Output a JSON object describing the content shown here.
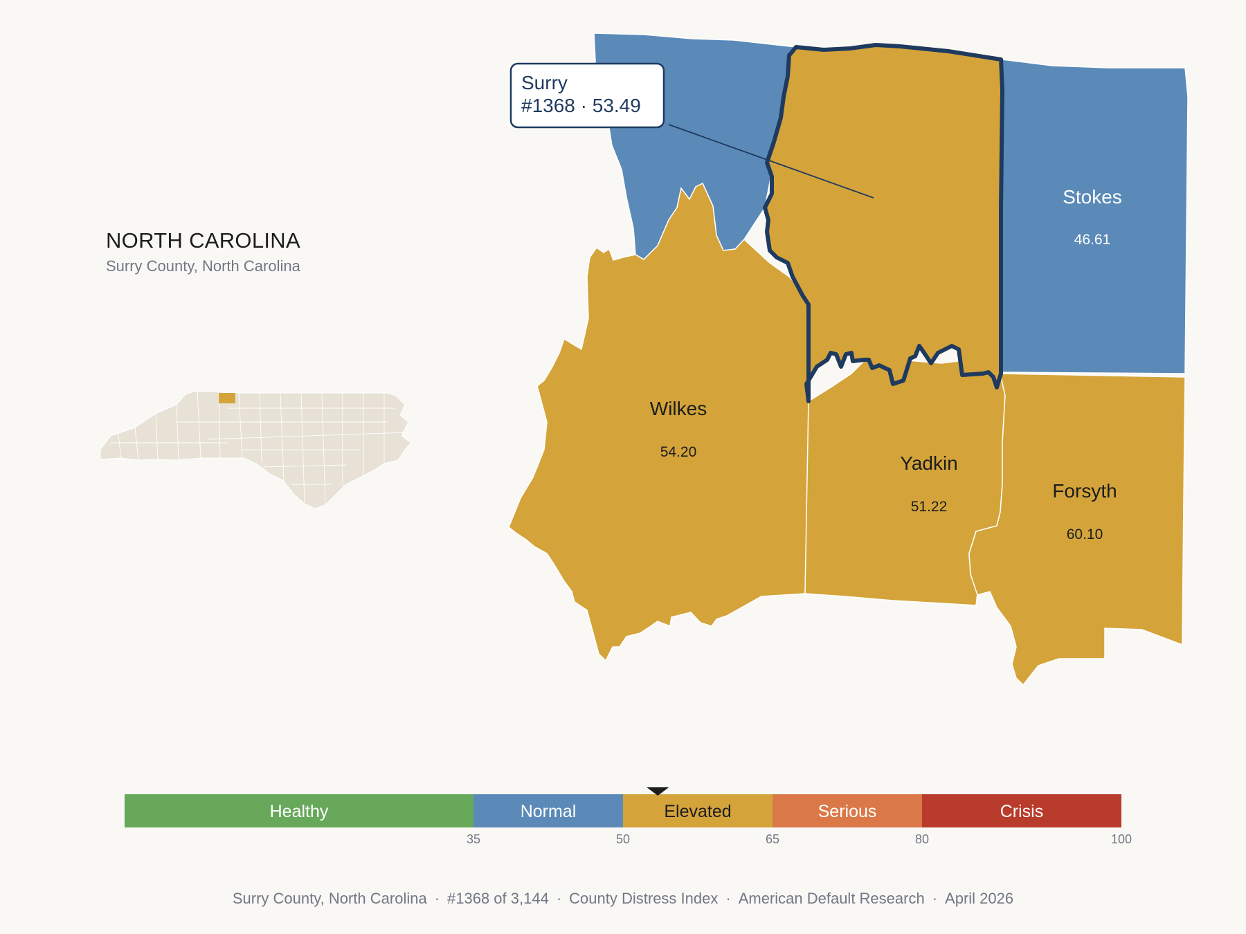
{
  "state": {
    "title": "NORTH CAROLINA",
    "subtitle": "Surry County, North Carolina"
  },
  "callout": {
    "name": "Surry",
    "detail": "#1368 · 53.49"
  },
  "counties": {
    "wilkes": {
      "name": "Wilkes",
      "value": "54.20"
    },
    "yadkin": {
      "name": "Yadkin",
      "value": "51.22"
    },
    "forsyth": {
      "name": "Forsyth",
      "value": "60.10"
    },
    "stokes": {
      "name": "Stokes",
      "value": "46.61"
    }
  },
  "scale": {
    "marker_value": 53.49,
    "min": 0,
    "max": 100,
    "categories": [
      {
        "label": "Healthy",
        "from": 0,
        "to": 35,
        "color": "#67a85a",
        "text_color": "#ffffff"
      },
      {
        "label": "Normal",
        "from": 35,
        "to": 50,
        "color": "#5b8ab8",
        "text_color": "#ffffff"
      },
      {
        "label": "Elevated",
        "from": 50,
        "to": 65,
        "color": "#d4a43b",
        "text_color": "#1c1c1c"
      },
      {
        "label": "Serious",
        "from": 65,
        "to": 80,
        "color": "#db7848",
        "text_color": "#ffffff"
      },
      {
        "label": "Crisis",
        "from": 80,
        "to": 100,
        "color": "#b83b2c",
        "text_color": "#ffffff"
      }
    ],
    "ticks": [
      "35",
      "50",
      "65",
      "80",
      "100"
    ]
  },
  "colors": {
    "elevated": "#d4a43b",
    "normal": "#5b8ab8",
    "highlight_outline": "#1f3a5f",
    "inset_fill": "#e7e1d6",
    "background": "#f9f8f5"
  },
  "footer": {
    "items": [
      "Surry County, North Carolina",
      "#1368 of 3,144",
      "County Distress Index",
      "American Default Research",
      "April 2026"
    ]
  }
}
